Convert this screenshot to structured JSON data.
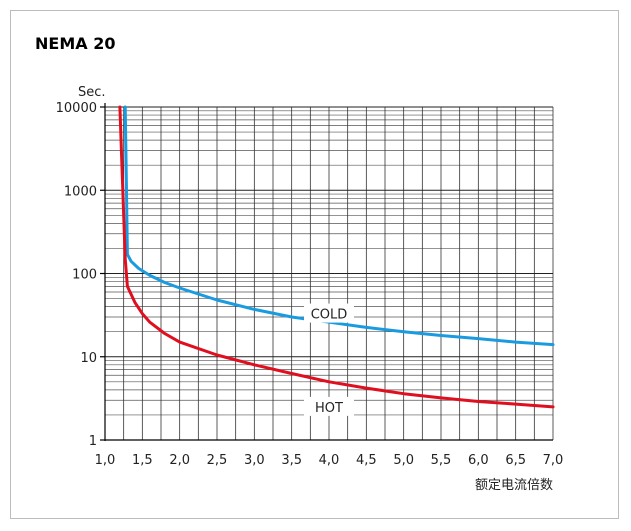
{
  "title": "NEMA 20",
  "chart_data": {
    "type": "line",
    "title": "NEMA 20",
    "xlabel": "额定电流倍数",
    "ylabel": "Sec.",
    "xlim": [
      1.0,
      7.0
    ],
    "ylim": [
      1,
      10000
    ],
    "yscale": "log",
    "grid": true,
    "x_ticks": [
      "1,0",
      "1,5",
      "2,0",
      "2,5",
      "3,0",
      "3,5",
      "4,0",
      "4,5",
      "5,0",
      "5,5",
      "6,0",
      "6,5",
      "7,0"
    ],
    "y_ticks": [
      "1",
      "10",
      "100",
      "1000",
      "10000"
    ],
    "series": [
      {
        "name": "COLD",
        "color": "#1a9be0",
        "x": [
          1.27,
          1.28,
          1.3,
          1.35,
          1.45,
          1.6,
          1.8,
          2.0,
          2.5,
          3.0,
          3.5,
          4.0,
          4.5,
          5.0,
          5.5,
          6.0,
          6.5,
          7.0
        ],
        "y": [
          10000,
          3000,
          170,
          140,
          115,
          95,
          78,
          67,
          48,
          37,
          30,
          26,
          22.5,
          20,
          18,
          16.5,
          15,
          14
        ]
      },
      {
        "name": "HOT",
        "color": "#e00f1f",
        "x": [
          1.2,
          1.22,
          1.25,
          1.27,
          1.3,
          1.4,
          1.5,
          1.6,
          1.8,
          2.0,
          2.5,
          3.0,
          3.5,
          4.0,
          4.5,
          5.0,
          5.5,
          6.0,
          6.5,
          7.0
        ],
        "y": [
          10000,
          3000,
          500,
          150,
          70,
          45,
          33,
          26,
          19,
          15,
          10.5,
          8,
          6.3,
          5,
          4.2,
          3.6,
          3.2,
          2.9,
          2.7,
          2.5
        ]
      }
    ]
  }
}
